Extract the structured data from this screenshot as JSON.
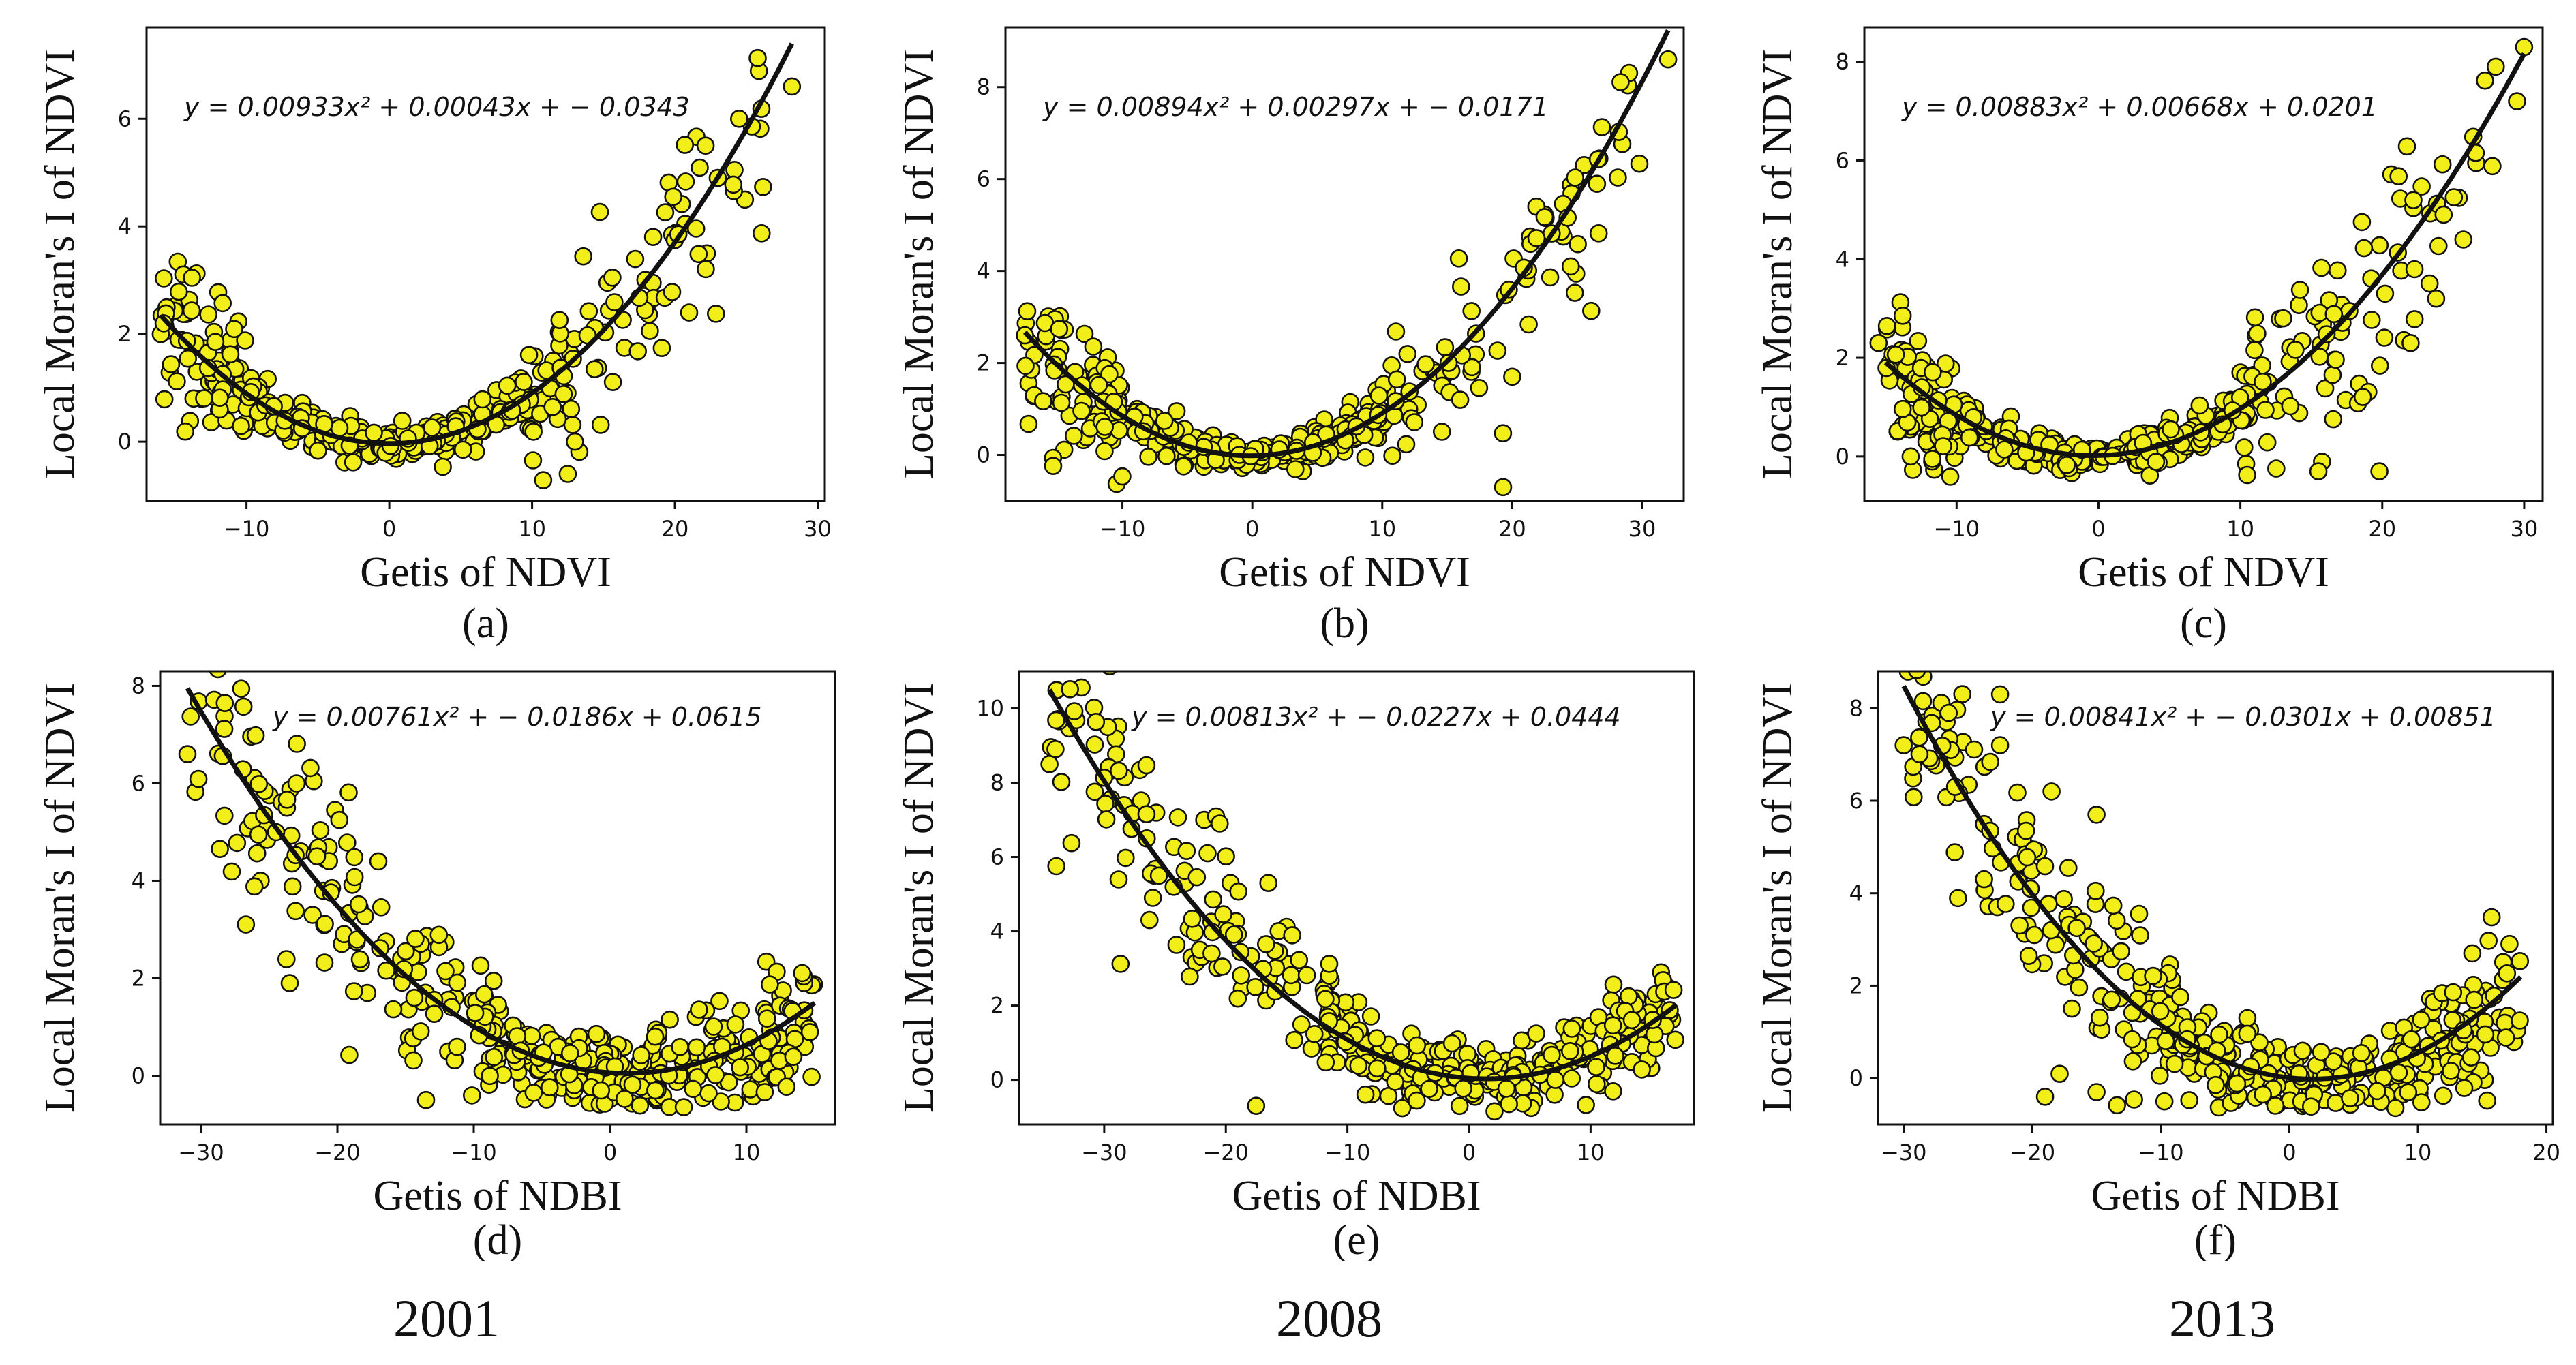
{
  "figure": {
    "years": [
      "2001",
      "2008",
      "2013"
    ],
    "colors": {
      "point_fill": "#f2ee1a",
      "point_stroke": "#111111",
      "curve": "#111111"
    }
  },
  "chart_data": [
    {
      "type": "scatter",
      "panel_label": "(a)",
      "xlabel": "Getis of NDVI",
      "ylabel": "Local Moran's I of NDVI",
      "equation": "y = 0.00933x² + 0.00043x + − 0.0343",
      "fit": {
        "a": 0.00933,
        "b": 0.00043,
        "c": -0.0343,
        "x_range": [
          -16,
          28.2
        ]
      },
      "xlim": [
        -17,
        30.5
      ],
      "ylim": [
        -1.1,
        7.7
      ],
      "xticks": [
        -10,
        0,
        10,
        20,
        30
      ],
      "yticks": [
        0,
        2,
        4,
        6
      ],
      "seed": 11,
      "n_points": 400,
      "outliers": [
        [
          -16,
          2.0
        ],
        [
          -15.8,
          2.2
        ],
        [
          24.5,
          6.0
        ],
        [
          28.2,
          6.6
        ],
        [
          23,
          4.9
        ],
        [
          12.5,
          -0.6
        ],
        [
          13,
          0
        ],
        [
          21,
          2.4
        ]
      ]
    },
    {
      "type": "scatter",
      "panel_label": "(b)",
      "xlabel": "Getis of NDVI",
      "ylabel": "Local Moran's I of NDVI",
      "equation": "y = 0.00894x² + 0.00297x + − 0.0171",
      "fit": {
        "a": 0.00894,
        "b": 0.00297,
        "c": -0.0171,
        "x_range": [
          -17.5,
          32
        ]
      },
      "xlim": [
        -19,
        33.2
      ],
      "ylim": [
        -1.0,
        9.3
      ],
      "xticks": [
        -10,
        0,
        10,
        20,
        30
      ],
      "yticks": [
        0,
        2,
        4,
        6,
        8
      ],
      "seed": 23,
      "n_points": 400,
      "outliers": [
        [
          -17.5,
          2.6
        ],
        [
          32,
          8.6
        ],
        [
          19.3,
          -0.7
        ],
        [
          24.5,
          4.1
        ],
        [
          20,
          1.7
        ],
        [
          16,
          1.2
        ]
      ]
    },
    {
      "type": "scatter",
      "panel_label": "(c)",
      "xlabel": "Getis of NDVI",
      "ylabel": "Local Moran's I of NDVI",
      "equation": "y = 0.00883x² + 0.00668x + 0.0201",
      "fit": {
        "a": 0.00883,
        "b": 0.00668,
        "c": 0.0201,
        "x_range": [
          -15,
          30
        ]
      },
      "xlim": [
        -16.5,
        31.3
      ],
      "ylim": [
        -0.9,
        8.7
      ],
      "xticks": [
        -10,
        0,
        10,
        20,
        30
      ],
      "yticks": [
        0,
        2,
        4,
        6,
        8
      ],
      "seed": 37,
      "n_points": 400,
      "outliers": [
        [
          -15.5,
          2.3
        ],
        [
          30,
          8.3
        ],
        [
          29.5,
          7.2
        ],
        [
          28,
          7.9
        ],
        [
          19.8,
          -0.3
        ],
        [
          15.5,
          -0.3
        ],
        [
          22,
          2.3
        ],
        [
          23.8,
          3.2
        ],
        [
          20.2,
          3.3
        ]
      ]
    },
    {
      "type": "scatter",
      "panel_label": "(d)",
      "xlabel": "Getis of NDBI",
      "ylabel": "Local Moran's I of NDVI",
      "equation": "y = 0.00761x² + − 0.0186x + 0.0615",
      "fit": {
        "a": 0.00761,
        "b": -0.0186,
        "c": 0.0615,
        "x_range": [
          -31,
          15
        ]
      },
      "xlim": [
        -33,
        16.5
      ],
      "ylim": [
        -1.0,
        8.3
      ],
      "xticks": [
        -30,
        -20,
        -10,
        0,
        10
      ],
      "yticks": [
        0,
        2,
        4,
        6,
        8
      ],
      "seed": 51,
      "n_points": 400,
      "outliers": [
        [
          -31,
          6.6
        ],
        [
          -23.5,
          1.9
        ],
        [
          -23,
          6.0
        ],
        [
          -24.5,
          5.0
        ],
        [
          -21.5,
          4.5
        ],
        [
          -13.5,
          -0.5
        ],
        [
          -17,
          4.4
        ]
      ]
    },
    {
      "type": "scatter",
      "panel_label": "(e)",
      "xlabel": "Getis of NDBI",
      "ylabel": "Local Moran's I of NDVI",
      "equation": "y = 0.00813x² + − 0.0227x + 0.0444",
      "fit": {
        "a": 0.00813,
        "b": -0.0227,
        "c": 0.0444,
        "x_range": [
          -34.5,
          17
        ]
      },
      "xlim": [
        -37,
        18.5
      ],
      "ylim": [
        -1.2,
        11.0
      ],
      "xticks": [
        -30,
        -20,
        -10,
        0,
        10
      ],
      "yticks": [
        0,
        2,
        4,
        6,
        8,
        10
      ],
      "seed": 67,
      "n_points": 400,
      "outliers": [
        [
          -34.5,
          8.5
        ],
        [
          -26.5,
          6.5
        ],
        [
          -25.5,
          5.5
        ],
        [
          -26,
          4.9
        ],
        [
          -20.5,
          6.9
        ],
        [
          -21.5,
          6.1
        ],
        [
          -17.5,
          -0.7
        ],
        [
          -16.5,
          5.3
        ]
      ]
    },
    {
      "type": "scatter",
      "panel_label": "(f)",
      "xlabel": "Getis of NDBI",
      "ylabel": "Local Moran's I of NDVI",
      "equation": "y = 0.00841x² + − 0.0301x + 0.00851",
      "fit": {
        "a": 0.00841,
        "b": -0.0301,
        "c": 0.00851,
        "x_range": [
          -30,
          18
        ]
      },
      "xlim": [
        -32,
        20.5
      ],
      "ylim": [
        -1.0,
        8.8
      ],
      "xticks": [
        -30,
        -20,
        -10,
        0,
        10,
        20
      ],
      "yticks": [
        0,
        2,
        4,
        6,
        8
      ],
      "seed": 83,
      "n_points": 400,
      "outliers": [
        [
          -30,
          7.2
        ],
        [
          -26.5,
          7.9
        ],
        [
          -22.5,
          8.3
        ],
        [
          -22.5,
          7.2
        ],
        [
          -26,
          6.3
        ],
        [
          -19,
          -0.4
        ],
        [
          -15,
          -0.3
        ],
        [
          -15,
          5.7
        ],
        [
          -18.5,
          6.2
        ]
      ]
    }
  ]
}
